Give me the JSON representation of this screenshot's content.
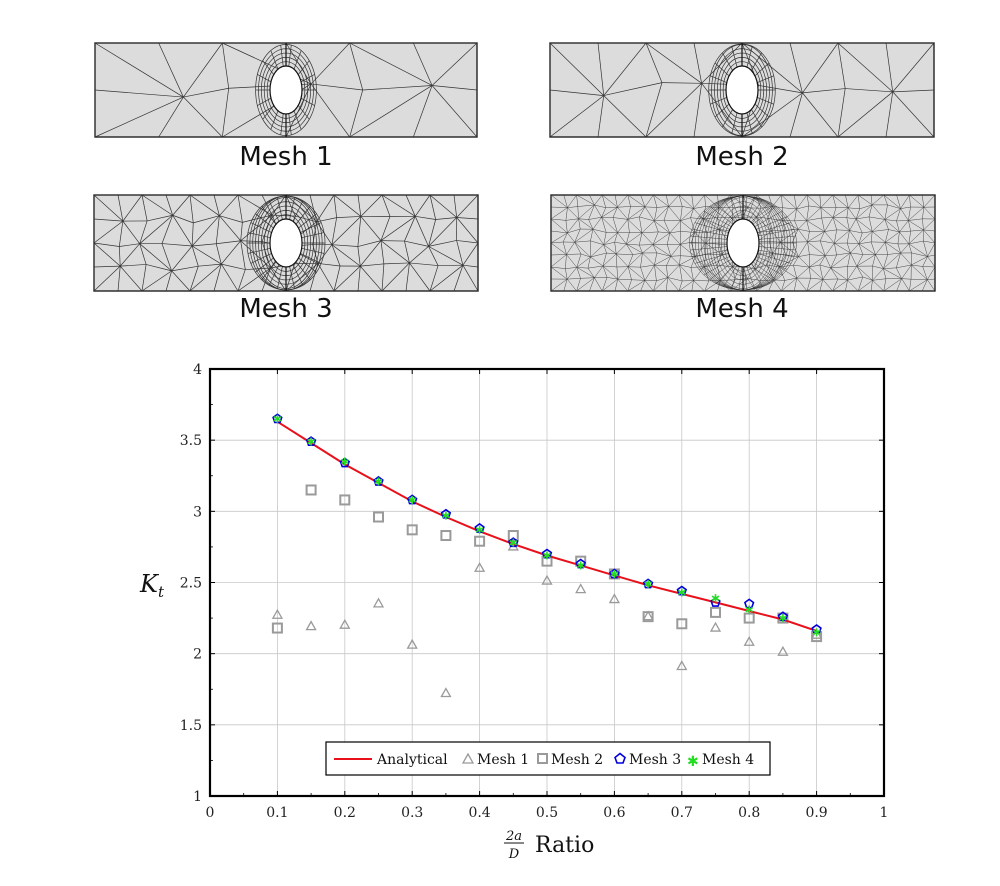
{
  "meshes": [
    {
      "caption": "Mesh 1",
      "density": 1
    },
    {
      "caption": "Mesh 2",
      "density": 1.4
    },
    {
      "caption": "Mesh 3",
      "density": 2.6
    },
    {
      "caption": "Mesh 4",
      "density": 5
    }
  ],
  "chart_data": {
    "type": "scatter",
    "xlabel_fraction_numerator": "2a",
    "xlabel_fraction_denominator": "D",
    "xlabel_suffix": "Ratio",
    "ylabel_main": "K",
    "ylabel_sub": "t",
    "xlim": [
      0,
      1
    ],
    "ylim": [
      1,
      4
    ],
    "xticks": [
      "0",
      "0.1",
      "0.2",
      "0.3",
      "0.4",
      "0.5",
      "0.6",
      "0.7",
      "0.8",
      "0.9",
      "1"
    ],
    "yticks": [
      "1",
      "1.5",
      "2",
      "2.5",
      "3",
      "3.5",
      "4"
    ],
    "grid": true,
    "legend_position": "bottom-center",
    "series": [
      {
        "name": "Analytical",
        "marker": "line",
        "color": "#e8111b",
        "x": [
          0.1,
          0.15,
          0.2,
          0.25,
          0.3,
          0.35,
          0.4,
          0.45,
          0.5,
          0.55,
          0.6,
          0.65,
          0.7,
          0.75,
          0.8,
          0.85,
          0.9
        ],
        "y": [
          3.63,
          3.48,
          3.33,
          3.2,
          3.07,
          2.96,
          2.86,
          2.77,
          2.69,
          2.62,
          2.55,
          2.48,
          2.42,
          2.36,
          2.3,
          2.24,
          2.16
        ]
      },
      {
        "name": "Mesh 1",
        "marker": "triangle",
        "color": "#9a9a9a",
        "x": [
          0.1,
          0.15,
          0.2,
          0.25,
          0.3,
          0.35,
          0.4,
          0.45,
          0.5,
          0.55,
          0.6,
          0.65,
          0.7,
          0.75,
          0.8,
          0.85,
          0.9
        ],
        "y": [
          2.27,
          2.19,
          2.2,
          2.35,
          2.06,
          1.72,
          2.6,
          2.75,
          2.51,
          2.45,
          2.38,
          2.26,
          1.91,
          2.18,
          2.08,
          2.01,
          2.13
        ]
      },
      {
        "name": "Mesh 2",
        "marker": "square",
        "color": "#9a9a9a",
        "x": [
          0.1,
          0.15,
          0.2,
          0.25,
          0.3,
          0.35,
          0.4,
          0.45,
          0.5,
          0.55,
          0.6,
          0.65,
          0.7,
          0.75,
          0.8,
          0.85,
          0.9
        ],
        "y": [
          2.18,
          3.15,
          3.08,
          2.96,
          2.87,
          2.83,
          2.79,
          2.83,
          2.65,
          2.65,
          2.56,
          2.26,
          2.21,
          2.29,
          2.25,
          2.25,
          2.12
        ]
      },
      {
        "name": "Mesh 3",
        "marker": "pentagon",
        "color": "#0000dd",
        "x": [
          0.1,
          0.15,
          0.2,
          0.25,
          0.3,
          0.35,
          0.4,
          0.45,
          0.5,
          0.55,
          0.6,
          0.65,
          0.7,
          0.75,
          0.8,
          0.85,
          0.9
        ],
        "y": [
          3.65,
          3.49,
          3.34,
          3.21,
          3.08,
          2.98,
          2.88,
          2.78,
          2.7,
          2.63,
          2.56,
          2.49,
          2.44,
          2.36,
          2.35,
          2.26,
          2.17
        ]
      },
      {
        "name": "Mesh 4",
        "marker": "star",
        "color": "#22dd22",
        "x": [
          0.1,
          0.15,
          0.2,
          0.25,
          0.3,
          0.35,
          0.4,
          0.45,
          0.5,
          0.55,
          0.6,
          0.65,
          0.7,
          0.75,
          0.8,
          0.85,
          0.9
        ],
        "y": [
          3.65,
          3.49,
          3.35,
          3.21,
          3.08,
          2.97,
          2.87,
          2.78,
          2.69,
          2.62,
          2.56,
          2.49,
          2.43,
          2.39,
          2.31,
          2.25,
          2.15
        ]
      }
    ]
  }
}
